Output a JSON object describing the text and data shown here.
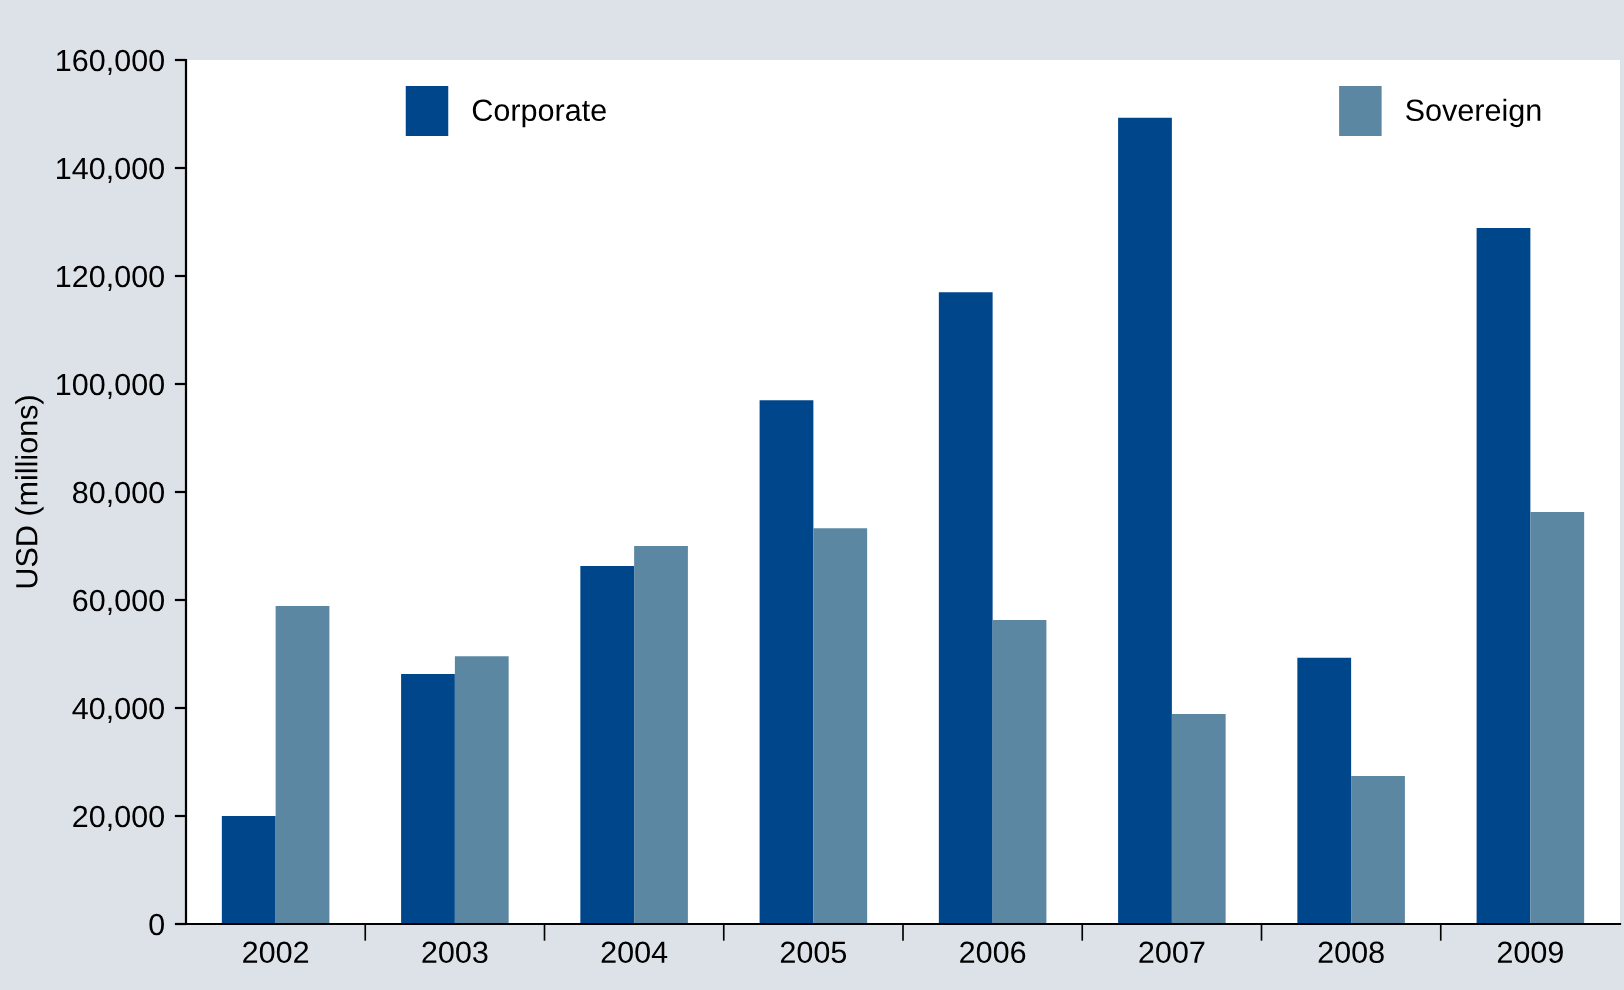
{
  "chart_data": {
    "type": "bar",
    "ylabel": "USD (millions)",
    "categories": [
      "2002",
      "2003",
      "2004",
      "2005",
      "2006",
      "2007",
      "2008",
      "2009"
    ],
    "series": [
      {
        "name": "Corporate",
        "color": "#00468b",
        "values": [
          20000,
          46300,
          66300,
          97000,
          117000,
          149300,
          49300,
          128900
        ]
      },
      {
        "name": "Sovereign",
        "color": "#5b87a3",
        "values": [
          58900,
          49600,
          70000,
          73300,
          56300,
          38900,
          27400,
          76300
        ]
      }
    ],
    "ylim": [
      0,
      160000
    ],
    "yticks": [
      {
        "value": 0,
        "label": "0"
      },
      {
        "value": 20000,
        "label": "20,000"
      },
      {
        "value": 40000,
        "label": "40,000"
      },
      {
        "value": 60000,
        "label": "60,000"
      },
      {
        "value": 80000,
        "label": "80,000"
      },
      {
        "value": 100000,
        "label": "100,000"
      },
      {
        "value": 120000,
        "label": "120,000"
      },
      {
        "value": 140000,
        "label": "140,000"
      },
      {
        "value": 160000,
        "label": "160,000"
      }
    ],
    "grid": false,
    "legend": "top"
  }
}
